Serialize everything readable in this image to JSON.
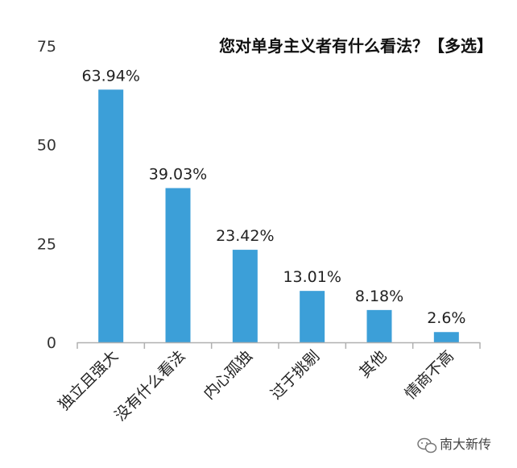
{
  "chart_data": {
    "type": "bar",
    "title": "您对单身主义者有什么看法？【多选】",
    "xlabel": "",
    "ylabel": "",
    "categories": [
      "独立且强大",
      "没有什么看法",
      "内心孤独",
      "过于挑剔",
      "其他",
      "情商不高"
    ],
    "values": [
      63.94,
      39.03,
      23.42,
      13.01,
      8.18,
      2.6
    ],
    "data_labels": [
      "63.94%",
      "39.03%",
      "23.42%",
      "13.01%",
      "8.18%",
      "2.6%"
    ],
    "ylim": [
      0,
      75
    ],
    "yticks": [
      0,
      25,
      50,
      75
    ],
    "grid": false,
    "legend": "none",
    "bar_color": "#3c9fd8",
    "axis_color": "#b0b0b0"
  },
  "watermark": {
    "icon": "wechat-icon",
    "text": "南大新传"
  }
}
